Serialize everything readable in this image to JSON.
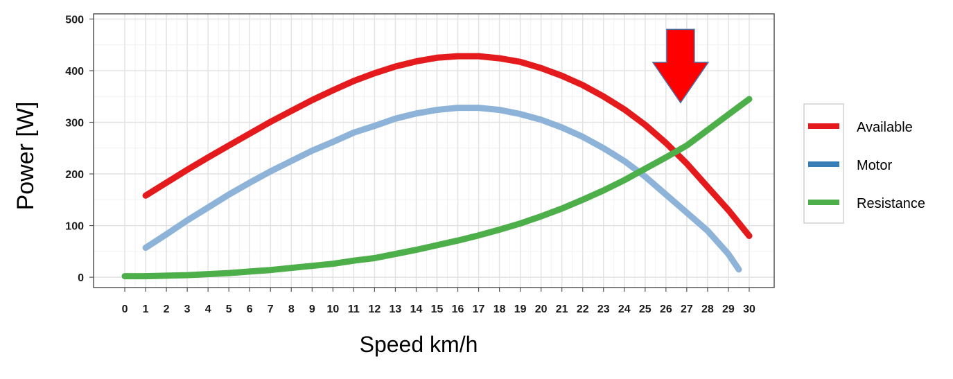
{
  "chart_data": {
    "type": "line",
    "title": "",
    "xlabel": "Speed km/h",
    "ylabel": "Power [W]",
    "xlim": [
      -1.5,
      31.2
    ],
    "ylim": [
      -20,
      510
    ],
    "x_ticks": [
      0,
      1,
      2,
      3,
      4,
      5,
      6,
      7,
      8,
      9,
      10,
      11,
      12,
      13,
      14,
      15,
      16,
      17,
      18,
      19,
      20,
      21,
      22,
      23,
      24,
      25,
      26,
      27,
      28,
      29,
      30
    ],
    "y_ticks": [
      0,
      100,
      200,
      300,
      400,
      500
    ],
    "grid": true,
    "legend_position": "right",
    "series": [
      {
        "name": "Available",
        "color": "#e41a1c",
        "x": [
          1,
          2,
          3,
          4,
          5,
          6,
          7,
          8,
          9,
          10,
          11,
          12,
          13,
          14,
          15,
          16,
          17,
          18,
          19,
          20,
          21,
          22,
          23,
          24,
          25,
          26,
          27,
          28,
          29,
          30
        ],
        "y": [
          158,
          183,
          208,
          232,
          255,
          278,
          301,
          322,
          343,
          362,
          380,
          395,
          408,
          418,
          425,
          428,
          428,
          424,
          417,
          405,
          390,
          372,
          350,
          325,
          295,
          260,
          220,
          175,
          130,
          80
        ]
      },
      {
        "name": "Motor",
        "color": "#377eb8",
        "draw_color": "#8db4d8",
        "x": [
          1,
          2,
          3,
          4,
          5,
          6,
          7,
          8,
          9,
          10,
          11,
          12,
          13,
          14,
          15,
          16,
          17,
          18,
          19,
          20,
          21,
          22,
          23,
          24,
          25,
          26,
          27,
          28,
          29,
          29.5
        ],
        "y": [
          57,
          83,
          110,
          135,
          160,
          183,
          205,
          225,
          245,
          262,
          280,
          293,
          307,
          317,
          324,
          328,
          328,
          324,
          316,
          305,
          290,
          272,
          250,
          225,
          195,
          160,
          125,
          90,
          45,
          15
        ]
      },
      {
        "name": "Resistance",
        "color": "#4daf4a",
        "x": [
          0,
          1,
          2,
          3,
          4,
          5,
          6,
          7,
          8,
          9,
          10,
          11,
          12,
          13,
          14,
          15,
          16,
          17,
          18,
          19,
          20,
          21,
          22,
          23,
          24,
          25,
          26,
          27,
          28,
          29,
          30
        ],
        "y": [
          2,
          2,
          3,
          4,
          6,
          8,
          11,
          14,
          18,
          22,
          26,
          32,
          37,
          45,
          53,
          62,
          71,
          81,
          92,
          104,
          118,
          133,
          150,
          168,
          188,
          210,
          232,
          255,
          285,
          315,
          345
        ]
      }
    ],
    "annotation": {
      "type": "arrow-down",
      "color": "#ff0000",
      "x": 26.7,
      "y_tip": 338,
      "y_top": 480
    }
  }
}
